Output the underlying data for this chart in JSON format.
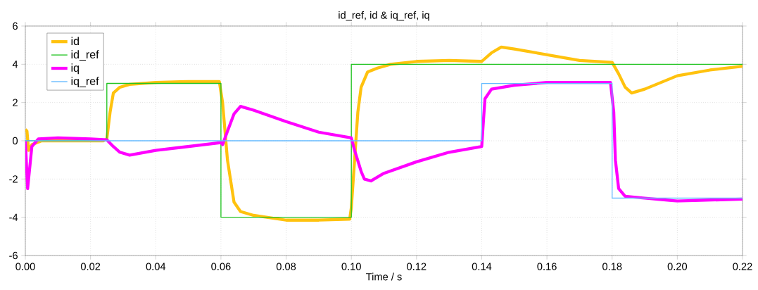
{
  "chart_data": {
    "type": "line",
    "title": "id_ref, id & iq_ref, iq",
    "xlabel": "Time / s",
    "xlim": [
      0,
      0.22
    ],
    "ylim": [
      -6,
      6
    ],
    "xticks": [
      {
        "value": 0,
        "label": "0.00"
      },
      {
        "value": 0.02,
        "label": "0.02"
      },
      {
        "value": 0.04,
        "label": "0.04"
      },
      {
        "value": 0.06,
        "label": "0.06"
      },
      {
        "value": 0.08,
        "label": "0.08"
      },
      {
        "value": 0.1,
        "label": "0.10"
      },
      {
        "value": 0.12,
        "label": "0.12"
      },
      {
        "value": 0.14,
        "label": "0.14"
      },
      {
        "value": 0.16,
        "label": "0.16"
      },
      {
        "value": 0.18,
        "label": "0.18"
      },
      {
        "value": 0.2,
        "label": "0.20"
      },
      {
        "value": 0.22,
        "label": "0.22"
      }
    ],
    "yticks": [
      -6,
      -4,
      -2,
      0,
      2,
      4,
      6
    ],
    "grid": true,
    "legend": "top left",
    "marker": "none",
    "line_style": "solid",
    "series": [
      {
        "name": "id",
        "type": "line",
        "color": "#ffc20e",
        "x": [
          0,
          0.0005,
          0.001,
          0.002,
          0.005,
          0.015,
          0.024,
          0.025,
          0.026,
          0.027,
          0.029,
          0.032,
          0.04,
          0.05,
          0.0595,
          0.0605,
          0.062,
          0.064,
          0.066,
          0.07,
          0.08,
          0.09,
          0.0995,
          0.1,
          0.101,
          0.102,
          0.103,
          0.105,
          0.108,
          0.112,
          0.12,
          0.13,
          0.14,
          0.143,
          0.146,
          0.15,
          0.16,
          0.17,
          0.18,
          0.182,
          0.184,
          0.186,
          0.19,
          0.2,
          0.21,
          0.22
        ],
        "values": [
          0.6,
          0.5,
          -0.5,
          -0.2,
          0,
          0,
          0,
          0.1,
          1.5,
          2.5,
          2.8,
          2.95,
          3.05,
          3.1,
          3.1,
          2,
          -1,
          -3.2,
          -3.7,
          -3.9,
          -4.15,
          -4.15,
          -4.1,
          -3.5,
          -1,
          1.5,
          2.8,
          3.6,
          3.8,
          4,
          4.15,
          4.2,
          4.15,
          4.6,
          4.9,
          4.8,
          4.5,
          4.2,
          4.1,
          3.5,
          2.8,
          2.5,
          2.7,
          3.4,
          3.7,
          3.9
        ]
      },
      {
        "name": "id_ref",
        "type": "step",
        "color": "#22c422",
        "x": [
          0,
          0.025,
          0.06,
          0.1,
          0.22
        ],
        "values": [
          0,
          3,
          -4,
          4,
          4
        ]
      },
      {
        "name": "iq",
        "type": "line",
        "color": "#ff00ff",
        "x": [
          0,
          0.0007,
          0.002,
          0.004,
          0.01,
          0.02,
          0.025,
          0.027,
          0.029,
          0.032,
          0.04,
          0.05,
          0.06,
          0.0605,
          0.062,
          0.064,
          0.066,
          0.07,
          0.08,
          0.09,
          0.1,
          0.101,
          0.103,
          0.104,
          0.106,
          0.11,
          0.12,
          0.13,
          0.14,
          0.1405,
          0.141,
          0.143,
          0.15,
          0.16,
          0.17,
          0.1795,
          0.1805,
          0.181,
          0.182,
          0.184,
          0.19,
          0.2,
          0.21,
          0.22
        ],
        "values": [
          0,
          -2.5,
          -0.3,
          0.1,
          0.15,
          0.1,
          0.05,
          -0.3,
          -0.6,
          -0.75,
          -0.5,
          -0.3,
          -0.1,
          -0.2,
          0.5,
          1.4,
          1.8,
          1.6,
          1,
          0.45,
          0.15,
          -0.5,
          -1.6,
          -2,
          -2.1,
          -1.7,
          -1.1,
          -0.6,
          -0.3,
          1,
          2.2,
          2.7,
          2.9,
          3.05,
          3.05,
          3.05,
          1.5,
          -1,
          -2.5,
          -2.9,
          -3,
          -3.15,
          -3.1,
          -3.05
        ]
      },
      {
        "name": "iq_ref",
        "type": "step",
        "color": "#66bbff",
        "x": [
          0,
          0.14,
          0.18,
          0.22
        ],
        "values": [
          0,
          3,
          -3,
          -3
        ]
      }
    ]
  }
}
